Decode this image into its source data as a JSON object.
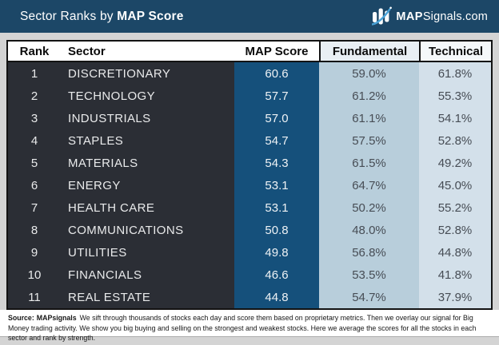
{
  "header": {
    "title_regular": "Sector Ranks by ",
    "title_bold": "MAP Score",
    "logo": {
      "brand_bold": "MAP",
      "brand_rest": "Signals.com"
    }
  },
  "chart_data": {
    "type": "table",
    "title": "Sector Ranks by MAP Score",
    "columns": [
      "Rank",
      "Sector",
      "MAP Score",
      "Fundamental",
      "Technical"
    ],
    "rows": [
      {
        "rank": 1,
        "sector": "DISCRETIONARY",
        "map_score": 60.6,
        "fundamental_pct": 59.0,
        "technical_pct": 61.8
      },
      {
        "rank": 2,
        "sector": "TECHNOLOGY",
        "map_score": 57.7,
        "fundamental_pct": 61.2,
        "technical_pct": 55.3
      },
      {
        "rank": 3,
        "sector": "INDUSTRIALS",
        "map_score": 57.0,
        "fundamental_pct": 61.1,
        "technical_pct": 54.1
      },
      {
        "rank": 4,
        "sector": "STAPLES",
        "map_score": 54.7,
        "fundamental_pct": 57.5,
        "technical_pct": 52.8
      },
      {
        "rank": 5,
        "sector": "MATERIALS",
        "map_score": 54.3,
        "fundamental_pct": 61.5,
        "technical_pct": 49.2
      },
      {
        "rank": 6,
        "sector": "ENERGY",
        "map_score": 53.1,
        "fundamental_pct": 64.7,
        "technical_pct": 45.0
      },
      {
        "rank": 7,
        "sector": "HEALTH CARE",
        "map_score": 53.1,
        "fundamental_pct": 50.2,
        "technical_pct": 55.2
      },
      {
        "rank": 8,
        "sector": "COMMUNICATIONS",
        "map_score": 50.8,
        "fundamental_pct": 48.0,
        "technical_pct": 52.8
      },
      {
        "rank": 9,
        "sector": "UTILITIES",
        "map_score": 49.8,
        "fundamental_pct": 56.8,
        "technical_pct": 44.8
      },
      {
        "rank": 10,
        "sector": "FINANCIALS",
        "map_score": 46.6,
        "fundamental_pct": 53.5,
        "technical_pct": 41.8
      },
      {
        "rank": 11,
        "sector": "REAL ESTATE",
        "map_score": 44.8,
        "fundamental_pct": 54.7,
        "technical_pct": 37.9
      }
    ]
  },
  "footer": {
    "source_label": "Source:",
    "source_brand": "MAPsignals",
    "body": "We sift through thousands of stocks each day and score them based on proprietary metrics. Then we overlay our signal for Big Money trading activity. We show you big buying and selling on the strongest and weakest stocks. Here we average the scores for all the stocks in each sector and rank by strength."
  },
  "colors": {
    "header_bar": "#1c4767",
    "rank_sector_column": "#2b2e35",
    "map_score_column": "#15507b",
    "fundamental_column": "#b8cedb",
    "technical_column": "#d3e0ea",
    "logo_swoosh": "#4aa3d8",
    "page_background": "#d4d4d4"
  }
}
